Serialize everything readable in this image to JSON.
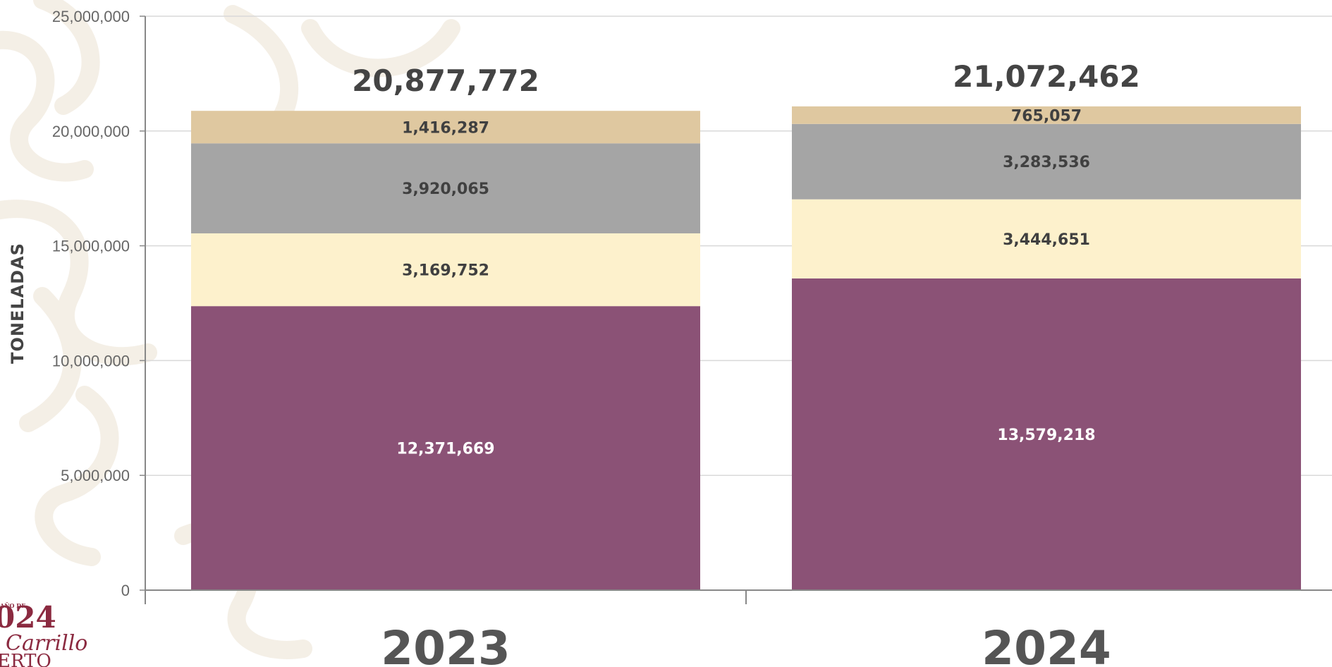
{
  "colors": {
    "series_1": "#8b5276",
    "series_2": "#fdf1cc",
    "series_3": "#a5a5a5",
    "series_4": "#dfc8a0",
    "axis": "#888888",
    "grid": "#d9d9d9",
    "label_dark": "#404040",
    "label_light": "#ffffff",
    "watermark": "#f4efe6",
    "logo": "#8b2a40"
  },
  "chart_data": {
    "type": "bar",
    "stacked": true,
    "categories": [
      "2023",
      "2024"
    ],
    "series": [
      {
        "values": [
          12371669,
          13579218
        ],
        "labels": [
          "12,371,669",
          "13,579,218"
        ]
      },
      {
        "values": [
          3169752,
          3444651
        ],
        "labels": [
          "3,169,752",
          "3,444,651"
        ]
      },
      {
        "values": [
          3920065,
          3283536
        ],
        "labels": [
          "3,920,065",
          "3,283,536"
        ]
      },
      {
        "values": [
          1416287,
          765057
        ],
        "labels": [
          "1,416,287",
          "765,057"
        ]
      }
    ],
    "totals": [
      20877772,
      21072462
    ],
    "total_labels": [
      "20,877,772",
      "21,072,462"
    ],
    "ylabel": "TONELADAS",
    "ylim": [
      0,
      25000000
    ],
    "yticks": [
      0,
      5000000,
      10000000,
      15000000,
      20000000,
      25000000
    ],
    "ytick_labels": [
      "0",
      "5,000,000",
      "10,000,000",
      "15,000,000",
      "20,000,000",
      "25,000,000"
    ],
    "grid": true,
    "legend": "none"
  },
  "logo": {
    "year": "024",
    "name": "Carrillo",
    "line3": "ERTO",
    "small": "AÑO DE"
  }
}
